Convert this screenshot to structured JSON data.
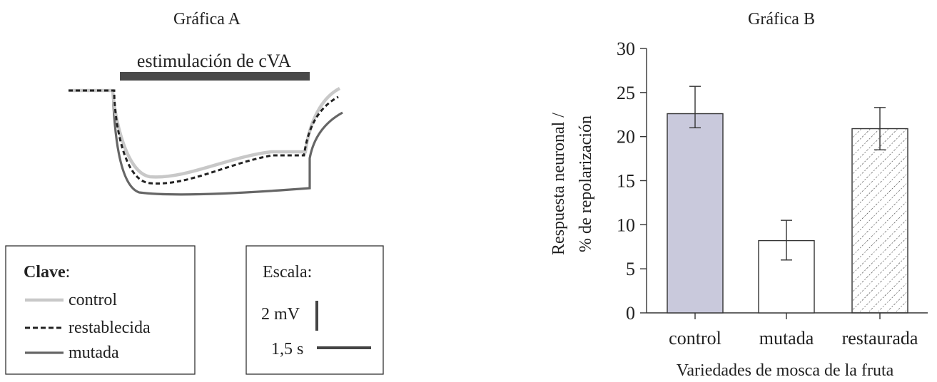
{
  "graph_a": {
    "title": "Gráfica A",
    "stimulus_label": "estimulación de cVA",
    "key": {
      "title": "Clave",
      "title_suffix": ":",
      "items": [
        {
          "label": "control",
          "color": "#c8c8c8",
          "style": "solid"
        },
        {
          "label": "restablecida",
          "color": "#222222",
          "style": "dashed"
        },
        {
          "label": "mutada",
          "color": "#666666",
          "style": "solid"
        }
      ]
    },
    "scale": {
      "title": "Escala:",
      "voltage_label": "2 mV",
      "time_label": "1,5 s"
    }
  },
  "chart_data": {
    "type": "bar",
    "title": "Gráfica B",
    "xlabel": "Variedades de mosca de la fruta",
    "ylabel_line1": "Respuesta neuronal /",
    "ylabel_line2": "% de repolarización",
    "categories": [
      "control",
      "mutada",
      "restaurada"
    ],
    "values": [
      22.6,
      8.2,
      20.9
    ],
    "error_low": [
      21.0,
      6.0,
      18.5
    ],
    "error_high": [
      25.7,
      10.5,
      23.3
    ],
    "bar_fills": [
      "solid-lavender",
      "white",
      "diagonal-hatch"
    ],
    "bar_color": "#c9c9dc",
    "ylim": [
      0,
      30
    ],
    "yticks": [
      0,
      5,
      10,
      15,
      20,
      25,
      30
    ],
    "grid": false
  }
}
